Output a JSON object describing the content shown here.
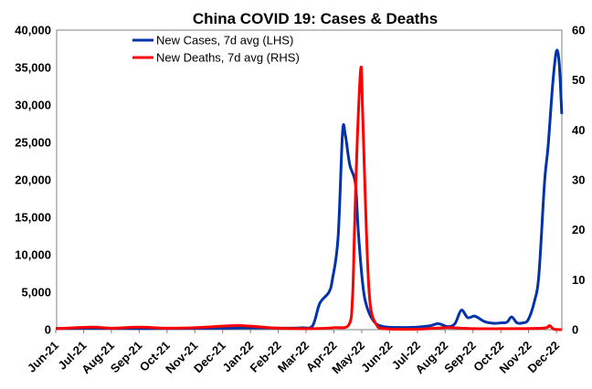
{
  "chart_data": {
    "type": "line",
    "title": "China COVID 19: Cases & Deaths",
    "xlabel": "",
    "ylabel_left": "",
    "ylabel_right": "",
    "x_unit": "months since Jun-21",
    "categories": [
      "Jun-21",
      "Jul-21",
      "Aug-21",
      "Sep-21",
      "Oct-21",
      "Nov-21",
      "Dec-21",
      "Jan-22",
      "Feb-22",
      "Mar-22",
      "Apr-22",
      "May-22",
      "Jun-22",
      "Jul-22",
      "Aug-22",
      "Sep-22",
      "Oct-22",
      "Nov-22",
      "Dec-22"
    ],
    "xlim": [
      0,
      18.2
    ],
    "ylim_left": [
      0,
      40000
    ],
    "ylim_right": [
      0,
      60
    ],
    "yticks_left": [
      "0",
      "5,000",
      "10,000",
      "15,000",
      "20,000",
      "25,000",
      "30,000",
      "35,000",
      "40,000"
    ],
    "yticks_right": [
      "0",
      "10",
      "20",
      "30",
      "40",
      "50",
      "60"
    ],
    "legend_position": "top-center",
    "grid": false,
    "series": [
      {
        "name": "New Cases, 7d avg (LHS)",
        "axis": "left",
        "color": "#0033AA",
        "x": [
          0,
          1.28,
          2.92,
          4.56,
          6.2,
          7.2,
          8.18,
          8.83,
          9.23,
          9.49,
          9.82,
          9.95,
          10.15,
          10.31,
          10.41,
          10.57,
          10.77,
          10.87,
          11.0,
          11.13,
          11.4,
          11.79,
          12.78,
          13.43,
          13.76,
          14.09,
          14.35,
          14.58,
          14.81,
          15.07,
          15.4,
          15.73,
          15.99,
          16.22,
          16.39,
          16.58,
          16.78,
          16.98,
          17.21,
          17.37,
          17.57,
          17.7,
          17.87,
          18.0,
          18.1,
          18.19
        ],
        "values": [
          150,
          200,
          150,
          180,
          200,
          250,
          200,
          250,
          500,
          3500,
          5000,
          6800,
          12300,
          26300,
          26000,
          22000,
          19600,
          13500,
          7400,
          3800,
          1300,
          400,
          300,
          500,
          800,
          400,
          800,
          2600,
          1600,
          1800,
          1100,
          850,
          900,
          1000,
          1700,
          900,
          900,
          1300,
          3800,
          7400,
          19600,
          24500,
          33000,
          37200,
          35500,
          28800
        ]
      },
      {
        "name": "New Deaths, 7d avg (RHS)",
        "axis": "right",
        "color": "#FF0000",
        "x": [
          0,
          1.3,
          2,
          3,
          4,
          5,
          6.4,
          7,
          8,
          9,
          10,
          10.54,
          10.67,
          10.74,
          10.84,
          10.97,
          11.03,
          11.13,
          11.23,
          11.33,
          11.53,
          11.79,
          13,
          14,
          15,
          16,
          17.5,
          17.75,
          17.9,
          18.19
        ],
        "values": [
          0.2,
          0.5,
          0.3,
          0.5,
          0.3,
          0.4,
          0.8,
          0.7,
          0.3,
          0.2,
          0.4,
          1,
          6.6,
          20,
          38,
          52.5,
          44,
          26,
          11,
          4,
          1,
          0.2,
          0.1,
          0.4,
          0.2,
          0.2,
          0.3,
          0.8,
          0.1,
          0
        ]
      }
    ]
  }
}
